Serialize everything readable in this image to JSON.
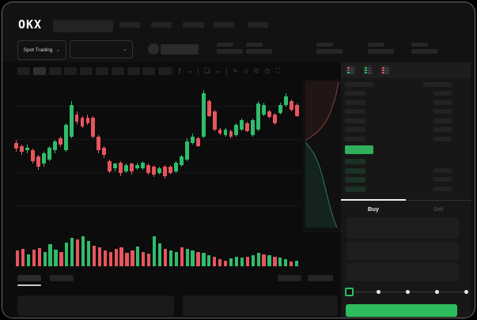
{
  "brand": {
    "logo_text": "OKX"
  },
  "market_selector": {
    "label": "Spot Trading",
    "caret": "⌄"
  },
  "pair_selector": {
    "caret": "⌄"
  },
  "toolbar": {
    "icons": [
      {
        "name": "indicator-icon",
        "glyph": "ƒ"
      },
      {
        "name": "chevron-down-icon",
        "glyph": "⌄"
      },
      {
        "name": "chart-layout-icon",
        "glyph": "❏"
      },
      {
        "name": "chevron-down-icon",
        "glyph": "⌄"
      },
      {
        "name": "line-tool-icon",
        "glyph": "∿"
      },
      {
        "name": "eraser-icon",
        "glyph": "◇"
      },
      {
        "name": "camera-icon",
        "glyph": "⊙"
      },
      {
        "name": "replay-icon",
        "glyph": "◷"
      },
      {
        "name": "fullscreen-icon",
        "glyph": "⛶"
      }
    ]
  },
  "colors": {
    "green": "#2ebd5e",
    "red": "#e0565f",
    "candle_green": "#2fbd6b",
    "candle_red": "#e8555c",
    "bid_tint": "rgba(46,189,107,0.16)",
    "last_price_bar": "#2fb05c"
  },
  "orderbook": {
    "view_icons": [
      {
        "name": "orderbook-combined-icon",
        "rows": [
          "red",
          "dim",
          "green"
        ]
      },
      {
        "name": "orderbook-bids-icon",
        "rows": [
          "green",
          "green",
          "green"
        ]
      },
      {
        "name": "orderbook-asks-icon",
        "rows": [
          "red",
          "red",
          "red"
        ]
      }
    ],
    "ask_rows": 6,
    "bid_rows": 4,
    "bid_right_rows": 3,
    "tabs": {
      "buy_label": "Buy",
      "sell_label": "Sell",
      "active": "buy"
    }
  },
  "trade_form": {
    "input_count": 3,
    "slider": {
      "stops": 5,
      "position_index": 0
    },
    "submit_variant": "buy"
  },
  "chart_data": {
    "type": "candlestick",
    "title": "",
    "xlabel": "",
    "ylabel": "",
    "axis_labels_visible": false,
    "grid": true,
    "candle_format": [
      "direction",
      "body_top_pct",
      "body_bottom_pct",
      "wick_top_pct",
      "wick_bottom_pct"
    ],
    "candles": [
      [
        "r",
        42,
        46,
        40,
        48
      ],
      [
        "r",
        44,
        48,
        43,
        50
      ],
      [
        "g",
        45,
        47,
        43,
        49
      ],
      [
        "r",
        47,
        54,
        46,
        56
      ],
      [
        "r",
        51,
        58,
        50,
        60
      ],
      [
        "g",
        49,
        56,
        48,
        58
      ],
      [
        "g",
        45,
        53,
        44,
        54
      ],
      [
        "g",
        41,
        47,
        40,
        49
      ],
      [
        "r",
        39,
        43,
        38,
        45
      ],
      [
        "g",
        30,
        47,
        29,
        48
      ],
      [
        "g",
        17,
        38,
        14,
        39
      ],
      [
        "r",
        23,
        28,
        21,
        30
      ],
      [
        "r",
        25,
        31,
        24,
        32
      ],
      [
        "r",
        25,
        29,
        23,
        30
      ],
      [
        "r",
        25,
        38,
        24,
        39
      ],
      [
        "r",
        38,
        47,
        37,
        49
      ],
      [
        "r",
        45,
        50,
        44,
        52
      ],
      [
        "r",
        54,
        61,
        53,
        62
      ],
      [
        "g",
        56,
        59,
        55,
        61
      ],
      [
        "r",
        55,
        62,
        54,
        64
      ],
      [
        "g",
        57,
        61,
        56,
        62
      ],
      [
        "r",
        56,
        61,
        55,
        63
      ],
      [
        "g",
        57,
        59,
        55,
        60
      ],
      [
        "g",
        55,
        59,
        54,
        60
      ],
      [
        "r",
        57,
        62,
        56,
        63
      ],
      [
        "r",
        58,
        63,
        57,
        65
      ],
      [
        "g",
        59,
        62,
        58,
        63
      ],
      [
        "r",
        58,
        64,
        57,
        66
      ],
      [
        "r",
        58,
        62,
        57,
        63
      ],
      [
        "g",
        55,
        61,
        54,
        62
      ],
      [
        "g",
        51,
        57,
        50,
        58
      ],
      [
        "g",
        41,
        53,
        39,
        54
      ],
      [
        "g",
        38,
        42,
        36,
        43
      ],
      [
        "r",
        39,
        44,
        38,
        45
      ],
      [
        "g",
        9,
        38,
        7,
        39
      ],
      [
        "r",
        14,
        24,
        13,
        25
      ],
      [
        "r",
        21,
        33,
        20,
        34
      ],
      [
        "r",
        33,
        36,
        32,
        37
      ],
      [
        "g",
        33,
        37,
        32,
        38
      ],
      [
        "r",
        34,
        38,
        33,
        39
      ],
      [
        "g",
        30,
        37,
        29,
        38
      ],
      [
        "g",
        27,
        33,
        26,
        34
      ],
      [
        "r",
        29,
        34,
        28,
        35
      ],
      [
        "g",
        27,
        37,
        26,
        38
      ],
      [
        "g",
        16,
        33,
        14,
        34
      ],
      [
        "g",
        17,
        23,
        15,
        24
      ],
      [
        "r",
        21,
        25,
        20,
        26
      ],
      [
        "r",
        23,
        29,
        22,
        30
      ],
      [
        "g",
        17,
        22,
        15,
        23
      ],
      [
        "g",
        11,
        17,
        9,
        18
      ],
      [
        "r",
        14,
        20,
        13,
        21
      ],
      [
        "r",
        17,
        24,
        16,
        25
      ]
    ],
    "volume_format": [
      "direction",
      "height_pct"
    ],
    "volume": [
      [
        "r",
        50
      ],
      [
        "r",
        55
      ],
      [
        "g",
        38
      ],
      [
        "r",
        52
      ],
      [
        "r",
        58
      ],
      [
        "g",
        46
      ],
      [
        "g",
        70
      ],
      [
        "g",
        52
      ],
      [
        "r",
        46
      ],
      [
        "g",
        76
      ],
      [
        "g",
        90
      ],
      [
        "r",
        84
      ],
      [
        "g",
        95
      ],
      [
        "g",
        80
      ],
      [
        "r",
        66
      ],
      [
        "r",
        60
      ],
      [
        "r",
        50
      ],
      [
        "r",
        46
      ],
      [
        "r",
        56
      ],
      [
        "r",
        60
      ],
      [
        "r",
        42
      ],
      [
        "r",
        50
      ],
      [
        "g",
        62
      ],
      [
        "r",
        46
      ],
      [
        "r",
        40
      ],
      [
        "g",
        96
      ],
      [
        "g",
        72
      ],
      [
        "r",
        56
      ],
      [
        "g",
        50
      ],
      [
        "g",
        46
      ],
      [
        "r",
        60
      ],
      [
        "g",
        56
      ],
      [
        "g",
        50
      ],
      [
        "r",
        46
      ],
      [
        "g",
        42
      ],
      [
        "g",
        36
      ],
      [
        "r",
        30
      ],
      [
        "r",
        22
      ],
      [
        "r",
        18
      ],
      [
        "g",
        26
      ],
      [
        "g",
        30
      ],
      [
        "g",
        28
      ],
      [
        "r",
        30
      ],
      [
        "g",
        36
      ],
      [
        "g",
        42
      ],
      [
        "r",
        38
      ],
      [
        "g",
        34
      ],
      [
        "r",
        30
      ],
      [
        "g",
        28
      ],
      [
        "g",
        22
      ],
      [
        "r",
        16
      ],
      [
        "g",
        18
      ]
    ],
    "depth": {
      "asks_line": "45,4 43,14 41,24 38,32 35,42 31,50 27,57 22,63 16,69 9,74 3,78",
      "asks_fill": "45,4 43,14 41,24 38,32 35,42 31,50 27,57 22,63 16,69 9,74 3,78 3,2 45,2",
      "bids_line": "3,80 8,86 13,93 17,101 21,111 24,121 27,133 30,145 33,157 36,168 39,178 43,188",
      "bids_fill": "3,80 8,86 13,93 17,101 21,111 24,121 27,133 30,145 33,157 36,168 39,178 43,188 3,188"
    }
  }
}
